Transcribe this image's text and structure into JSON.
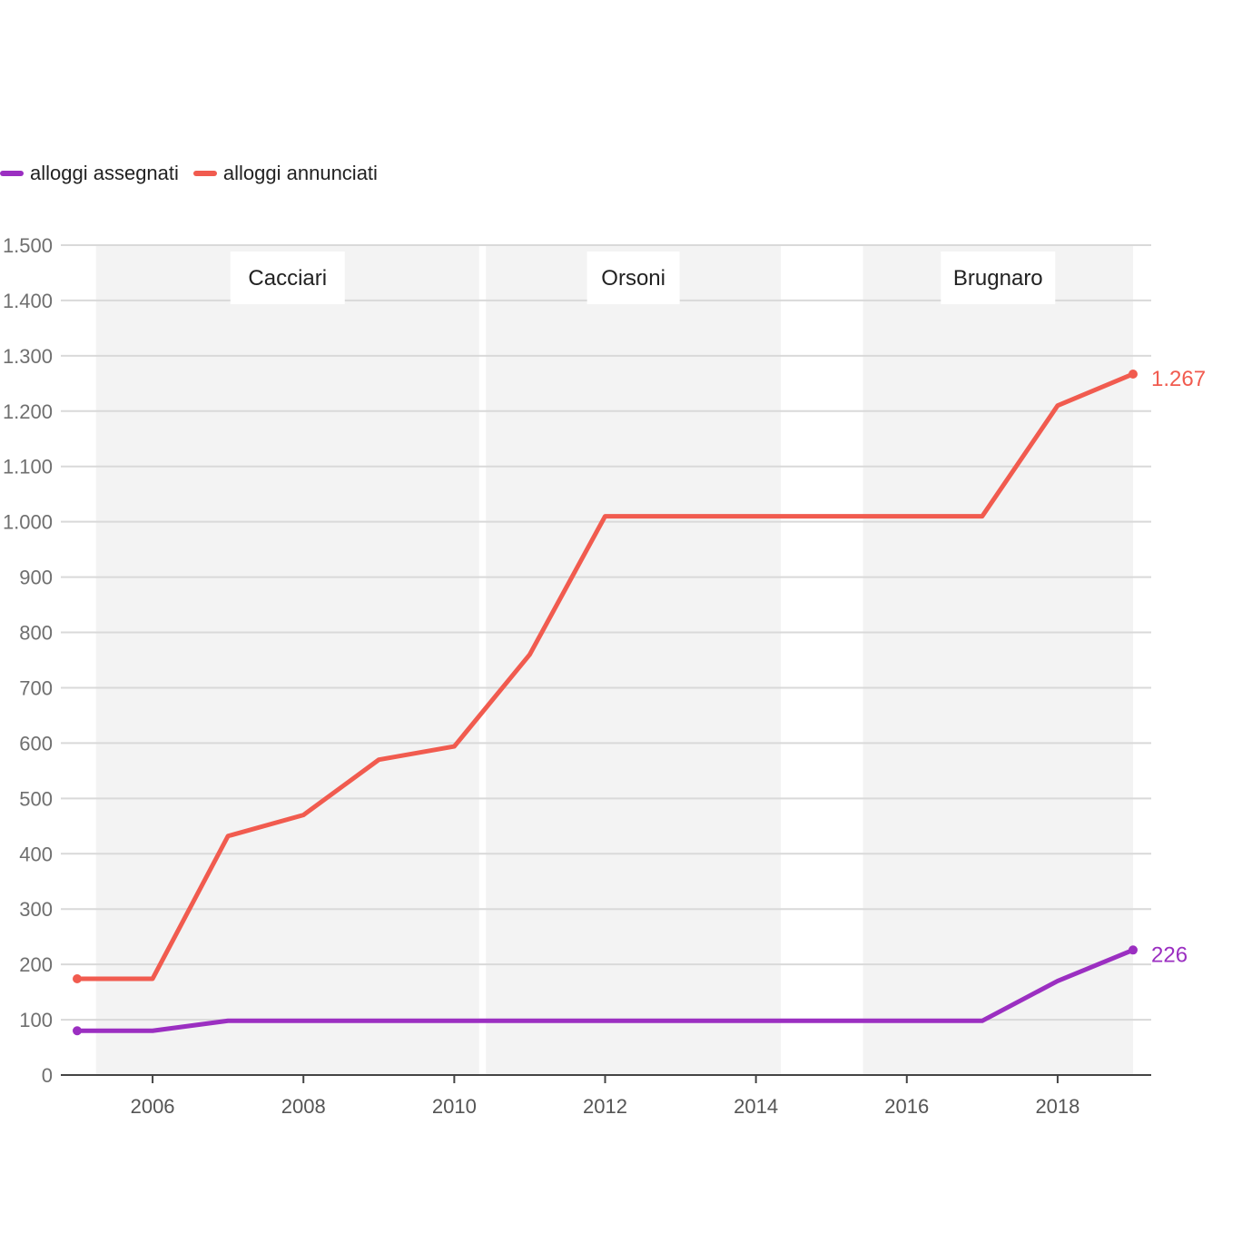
{
  "legend": {
    "items": [
      {
        "label": "alloggi assegnati",
        "color": "#9b2fc1"
      },
      {
        "label": "alloggi annunciati",
        "color": "#f15b4f"
      }
    ]
  },
  "chart_data": {
    "type": "line",
    "title": "",
    "xlabel": "",
    "ylabel": "",
    "xlim": [
      2005,
      2019
    ],
    "ylim": [
      0,
      1500
    ],
    "x_ticks": [
      2006,
      2008,
      2010,
      2012,
      2014,
      2016,
      2018
    ],
    "x_tick_labels": [
      "2006",
      "2008",
      "2010",
      "2012",
      "2014",
      "2016",
      "2018"
    ],
    "y_ticks": [
      0,
      100,
      200,
      300,
      400,
      500,
      600,
      700,
      800,
      900,
      1000,
      1100,
      1200,
      1300,
      1400,
      1500
    ],
    "y_tick_labels": [
      "0",
      "100",
      "200",
      "300",
      "400",
      "500",
      "600",
      "700",
      "800",
      "900",
      "1.000",
      "1.100",
      "1.200",
      "1.300",
      "1.400",
      "1.500"
    ],
    "grid": true,
    "legend_position": "top-left",
    "periods": [
      {
        "label": "Cacciari",
        "start": 2005.25,
        "end": 2010.33
      },
      {
        "label": "Orsoni",
        "start": 2010.42,
        "end": 2014.33
      },
      {
        "label": "Brugnaro",
        "start": 2015.42,
        "end": 2019
      }
    ],
    "x": [
      2005,
      2006,
      2007,
      2008,
      2009,
      2010,
      2011,
      2012,
      2013,
      2014,
      2015,
      2016,
      2017,
      2018,
      2019
    ],
    "series": [
      {
        "name": "alloggi assegnati",
        "color": "#9b2fc1",
        "values": [
          80,
          80,
          98,
          98,
          98,
          98,
          98,
          98,
          98,
          98,
          98,
          98,
          98,
          170,
          226
        ],
        "end_label": "226"
      },
      {
        "name": "alloggi annunciati",
        "color": "#f15b4f",
        "values": [
          174,
          174,
          432,
          470,
          570,
          594,
          760,
          1010,
          1010,
          1010,
          1010,
          1010,
          1010,
          1210,
          1267
        ],
        "end_label": "1.267"
      }
    ]
  }
}
